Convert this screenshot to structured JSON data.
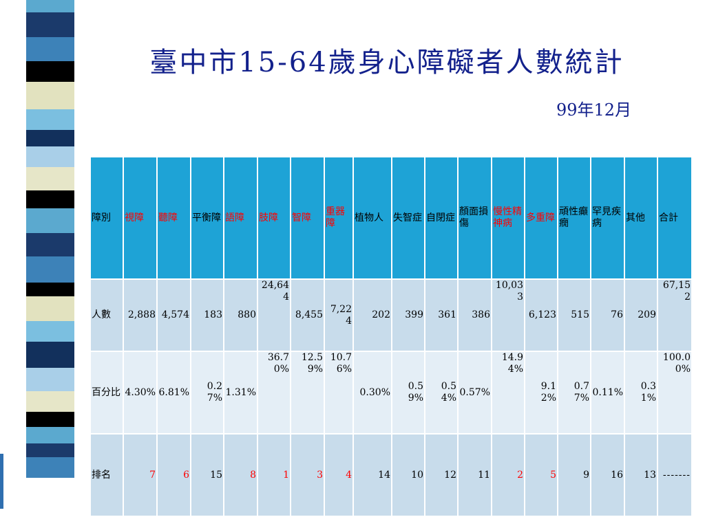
{
  "slide": {
    "title": "臺中市15-64歲身心障礙者人數統計",
    "date": "99年12月"
  },
  "colors": {
    "title": "#13218c",
    "header_bg": "#1ea3d6",
    "row_dark": "#c8dceb",
    "row_light": "#e4eef6",
    "highlight": "#ff0000",
    "stripes": [
      "#5ba9cf",
      "#1b3a6b",
      "#3d82b8",
      "#000000",
      "#e2e2bf",
      "#7bbfe0",
      "#12305c",
      "#a9cfe8",
      "#e6e6c8",
      "#0f2748"
    ]
  },
  "table": {
    "corner_label": "障別",
    "headers": [
      {
        "label": "視障",
        "highlight": true
      },
      {
        "label": "聽障",
        "highlight": true
      },
      {
        "label": "平衡障",
        "highlight": false
      },
      {
        "label": "語障",
        "highlight": true
      },
      {
        "label": "肢障",
        "highlight": true
      },
      {
        "label": "智障",
        "highlight": true
      },
      {
        "label": "重器障",
        "highlight": true
      },
      {
        "label": "植物人",
        "highlight": false
      },
      {
        "label": "失智症",
        "highlight": false
      },
      {
        "label": "自閉症",
        "highlight": false
      },
      {
        "label": "顏面損傷",
        "highlight": false
      },
      {
        "label": "慢性精神病",
        "highlight": true
      },
      {
        "label": "多重障",
        "highlight": true
      },
      {
        "label": "頑性癲癇",
        "highlight": false
      },
      {
        "label": "罕見疾病",
        "highlight": false
      },
      {
        "label": "其他",
        "highlight": false
      },
      {
        "label": "合計",
        "highlight": false
      }
    ],
    "rows": [
      {
        "label": "人數",
        "values": [
          "2,888",
          "4,574",
          "183",
          "880",
          "24,644",
          "8,455",
          "7,224",
          "202",
          "399",
          "361",
          "386",
          "10,033",
          "6,123",
          "515",
          "76",
          "209",
          "67,152"
        ]
      },
      {
        "label": "百分比",
        "values": [
          "4.30%",
          "6.81%",
          "0.27%",
          "1.31%",
          "36.70%",
          "12.59%",
          "10.76%",
          "0.30%",
          "0.59%",
          "0.54%",
          "0.57%",
          "14.94%",
          "9.12%",
          "0.77%",
          "0.11%",
          "0.31%",
          "100.00%"
        ]
      },
      {
        "label": "排名",
        "values": [
          "7",
          "6",
          "15",
          "8",
          "1",
          "3",
          "4",
          "14",
          "10",
          "12",
          "11",
          "2",
          "5",
          "9",
          "16",
          "13",
          "-------"
        ]
      }
    ]
  }
}
